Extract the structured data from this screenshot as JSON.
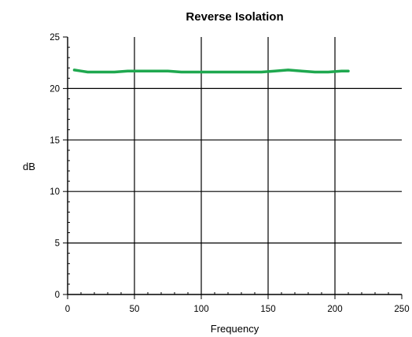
{
  "chart_data": {
    "type": "line",
    "title": "Reverse Isolation",
    "xlabel": "Frequency",
    "ylabel": "dB",
    "xlim": [
      0,
      250
    ],
    "ylim": [
      0,
      25
    ],
    "x_ticks": [
      "0",
      "50",
      "100",
      "150",
      "200",
      "250"
    ],
    "y_ticks": [
      "0",
      "5",
      "10",
      "15",
      "20",
      "25"
    ],
    "x_tick_values": [
      0,
      50,
      100,
      150,
      200,
      250
    ],
    "y_tick_values": [
      0,
      5,
      10,
      15,
      20,
      25
    ],
    "grid": true,
    "series": [
      {
        "color": "#1fa84f",
        "x": [
          5,
          10,
          15,
          25,
          35,
          45,
          55,
          65,
          75,
          85,
          95,
          105,
          115,
          125,
          135,
          145,
          155,
          165,
          175,
          185,
          195,
          205,
          210
        ],
        "y": [
          21.8,
          21.7,
          21.6,
          21.6,
          21.6,
          21.7,
          21.7,
          21.7,
          21.7,
          21.6,
          21.6,
          21.6,
          21.6,
          21.6,
          21.6,
          21.6,
          21.7,
          21.8,
          21.7,
          21.6,
          21.6,
          21.7,
          21.7
        ]
      }
    ]
  }
}
